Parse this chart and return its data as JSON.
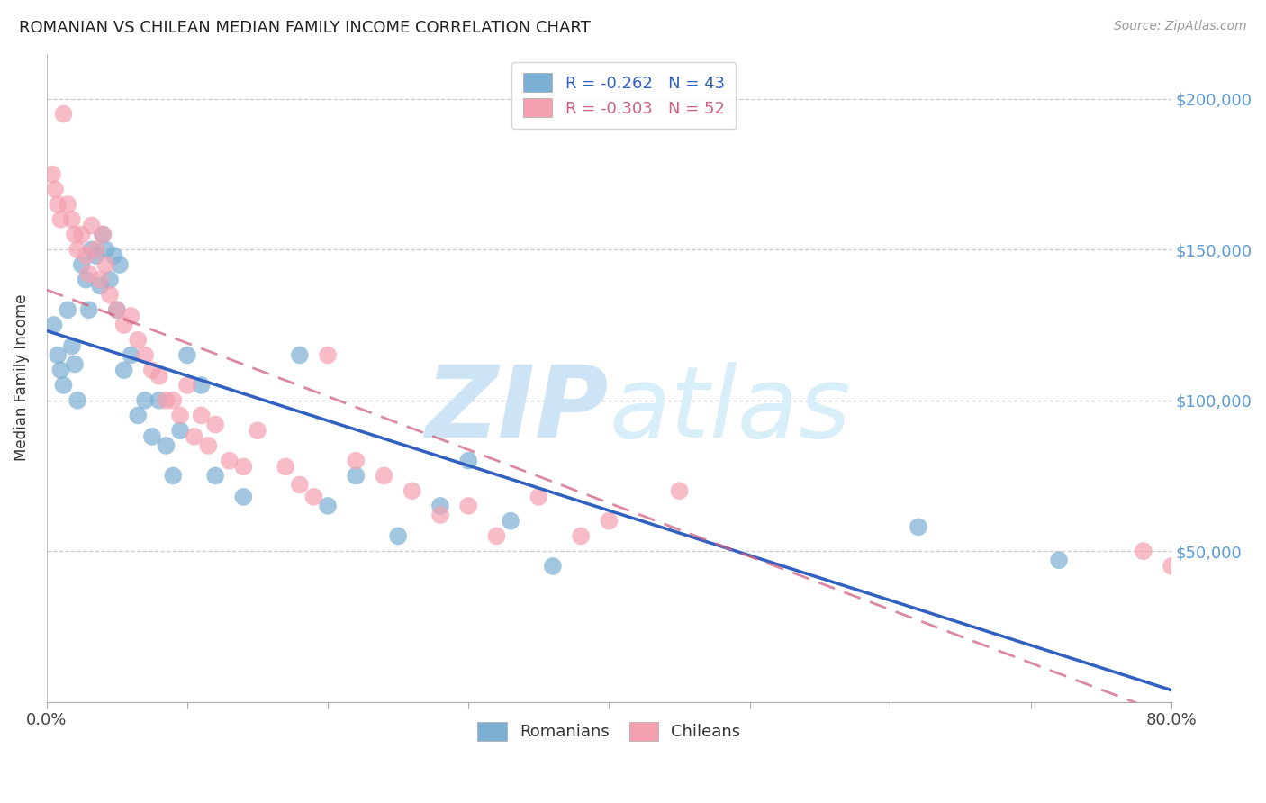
{
  "title": "ROMANIAN VS CHILEAN MEDIAN FAMILY INCOME CORRELATION CHART",
  "source": "Source: ZipAtlas.com",
  "ylabel": "Median Family Income",
  "ytick_labels": [
    "$50,000",
    "$100,000",
    "$150,000",
    "$200,000"
  ],
  "ytick_values": [
    50000,
    100000,
    150000,
    200000
  ],
  "ylim": [
    0,
    215000
  ],
  "xlim": [
    0.0,
    0.8
  ],
  "legend_romanian": "R = -0.262   N = 43",
  "legend_chilean": "R = -0.303   N = 52",
  "legend_label_romanian": "Romanians",
  "legend_label_chilean": "Chileans",
  "color_romanian": "#7bafd4",
  "color_chilean": "#f4a0b0",
  "color_line_romanian": "#3060c0",
  "color_line_chilean": "#d06080",
  "watermark_zip": "ZIP",
  "watermark_atlas": "atlas",
  "watermark_color": "#cce4f6",
  "background_color": "#ffffff",
  "grid_color": "#cccccc",
  "romanian_x": [
    0.005,
    0.008,
    0.01,
    0.012,
    0.015,
    0.018,
    0.02,
    0.022,
    0.025,
    0.028,
    0.03,
    0.032,
    0.035,
    0.038,
    0.04,
    0.042,
    0.045,
    0.048,
    0.05,
    0.052,
    0.055,
    0.06,
    0.065,
    0.07,
    0.075,
    0.08,
    0.085,
    0.09,
    0.095,
    0.1,
    0.11,
    0.12,
    0.14,
    0.18,
    0.2,
    0.22,
    0.25,
    0.28,
    0.3,
    0.33,
    0.36,
    0.62,
    0.72
  ],
  "romanian_y": [
    125000,
    115000,
    110000,
    105000,
    130000,
    118000,
    112000,
    100000,
    145000,
    140000,
    130000,
    150000,
    148000,
    138000,
    155000,
    150000,
    140000,
    148000,
    130000,
    145000,
    110000,
    115000,
    95000,
    100000,
    88000,
    100000,
    85000,
    75000,
    90000,
    115000,
    105000,
    75000,
    68000,
    115000,
    65000,
    75000,
    55000,
    65000,
    80000,
    60000,
    45000,
    58000,
    47000
  ],
  "chilean_x": [
    0.004,
    0.006,
    0.008,
    0.01,
    0.012,
    0.015,
    0.018,
    0.02,
    0.022,
    0.025,
    0.028,
    0.03,
    0.032,
    0.035,
    0.038,
    0.04,
    0.042,
    0.045,
    0.05,
    0.055,
    0.06,
    0.065,
    0.07,
    0.075,
    0.08,
    0.085,
    0.09,
    0.095,
    0.1,
    0.105,
    0.11,
    0.115,
    0.12,
    0.13,
    0.14,
    0.15,
    0.17,
    0.18,
    0.19,
    0.2,
    0.22,
    0.24,
    0.26,
    0.28,
    0.3,
    0.32,
    0.35,
    0.38,
    0.4,
    0.45,
    0.78,
    0.8
  ],
  "chilean_y": [
    175000,
    170000,
    165000,
    160000,
    195000,
    165000,
    160000,
    155000,
    150000,
    155000,
    148000,
    142000,
    158000,
    150000,
    140000,
    155000,
    145000,
    135000,
    130000,
    125000,
    128000,
    120000,
    115000,
    110000,
    108000,
    100000,
    100000,
    95000,
    105000,
    88000,
    95000,
    85000,
    92000,
    80000,
    78000,
    90000,
    78000,
    72000,
    68000,
    115000,
    80000,
    75000,
    70000,
    62000,
    65000,
    55000,
    68000,
    55000,
    60000,
    70000,
    50000,
    45000
  ]
}
